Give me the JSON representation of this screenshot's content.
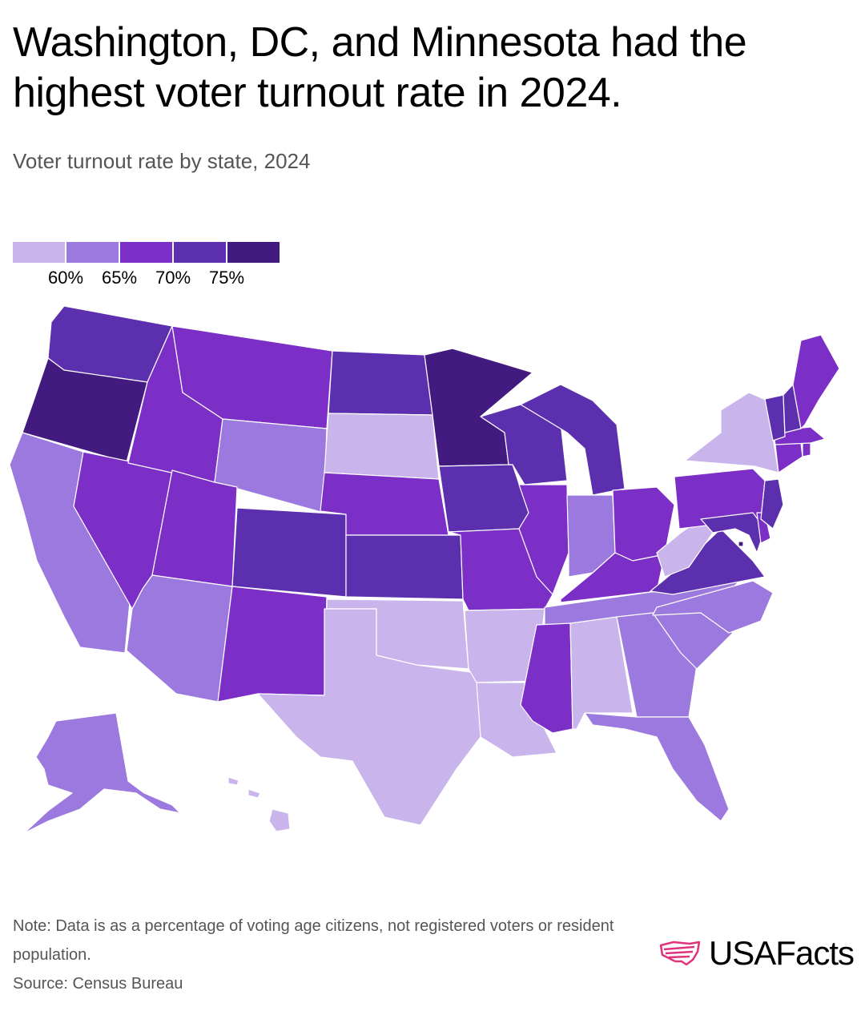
{
  "title": "Washington, DC, and Minnesota had the highest voter turnout rate in 2024.",
  "subtitle": "Voter turnout rate by state, 2024",
  "legend": {
    "ticks": [
      "60%",
      "65%",
      "70%",
      "75%"
    ],
    "bins": [
      {
        "label": "below 60%",
        "color": "#c9b4ec"
      },
      {
        "label": "60% to 65%",
        "color": "#9b79de"
      },
      {
        "label": "65% to 70%",
        "color": "#7b2fc6"
      },
      {
        "label": "70% to 75%",
        "color": "#5b2fae"
      },
      {
        "label": "75% and above",
        "color": "#431a80"
      }
    ]
  },
  "states": [
    {
      "code": "WA",
      "name": "Washington",
      "bin": 3
    },
    {
      "code": "OR",
      "name": "Oregon",
      "bin": 4
    },
    {
      "code": "CA",
      "name": "California",
      "bin": 1
    },
    {
      "code": "NV",
      "name": "Nevada",
      "bin": 2
    },
    {
      "code": "ID",
      "name": "Idaho",
      "bin": 2
    },
    {
      "code": "MT",
      "name": "Montana",
      "bin": 2
    },
    {
      "code": "WY",
      "name": "Wyoming",
      "bin": 1
    },
    {
      "code": "UT",
      "name": "Utah",
      "bin": 2
    },
    {
      "code": "AZ",
      "name": "Arizona",
      "bin": 1
    },
    {
      "code": "CO",
      "name": "Colorado",
      "bin": 3
    },
    {
      "code": "NM",
      "name": "New Mexico",
      "bin": 2
    },
    {
      "code": "ND",
      "name": "North Dakota",
      "bin": 3
    },
    {
      "code": "SD",
      "name": "South Dakota",
      "bin": 0
    },
    {
      "code": "NE",
      "name": "Nebraska",
      "bin": 2
    },
    {
      "code": "KS",
      "name": "Kansas",
      "bin": 3
    },
    {
      "code": "OK",
      "name": "Oklahoma",
      "bin": 0
    },
    {
      "code": "TX",
      "name": "Texas",
      "bin": 0
    },
    {
      "code": "MN",
      "name": "Minnesota",
      "bin": 4
    },
    {
      "code": "IA",
      "name": "Iowa",
      "bin": 3
    },
    {
      "code": "MO",
      "name": "Missouri",
      "bin": 2
    },
    {
      "code": "AR",
      "name": "Arkansas",
      "bin": 0
    },
    {
      "code": "LA",
      "name": "Louisiana",
      "bin": 0
    },
    {
      "code": "WI",
      "name": "Wisconsin",
      "bin": 3
    },
    {
      "code": "IL",
      "name": "Illinois",
      "bin": 2
    },
    {
      "code": "MI",
      "name": "Michigan",
      "bin": 3
    },
    {
      "code": "IN",
      "name": "Indiana",
      "bin": 1
    },
    {
      "code": "OH",
      "name": "Ohio",
      "bin": 2
    },
    {
      "code": "KY",
      "name": "Kentucky",
      "bin": 2
    },
    {
      "code": "TN",
      "name": "Tennessee",
      "bin": 1
    },
    {
      "code": "MS",
      "name": "Mississippi",
      "bin": 2
    },
    {
      "code": "AL",
      "name": "Alabama",
      "bin": 0
    },
    {
      "code": "GA",
      "name": "Georgia",
      "bin": 1
    },
    {
      "code": "FL",
      "name": "Florida",
      "bin": 1
    },
    {
      "code": "SC",
      "name": "South Carolina",
      "bin": 1
    },
    {
      "code": "NC",
      "name": "North Carolina",
      "bin": 1
    },
    {
      "code": "VA",
      "name": "Virginia",
      "bin": 3
    },
    {
      "code": "WV",
      "name": "West Virginia",
      "bin": 0
    },
    {
      "code": "PA",
      "name": "Pennsylvania",
      "bin": 2
    },
    {
      "code": "NY",
      "name": "New York",
      "bin": 0
    },
    {
      "code": "MD",
      "name": "Maryland",
      "bin": 3
    },
    {
      "code": "DE",
      "name": "Delaware",
      "bin": 2
    },
    {
      "code": "DC",
      "name": "Washington, DC",
      "bin": 4
    },
    {
      "code": "NJ",
      "name": "New Jersey",
      "bin": 3
    },
    {
      "code": "CT",
      "name": "Connecticut",
      "bin": 2
    },
    {
      "code": "RI",
      "name": "Rhode Island",
      "bin": 2
    },
    {
      "code": "MA",
      "name": "Massachusetts",
      "bin": 2
    },
    {
      "code": "VT",
      "name": "Vermont",
      "bin": 3
    },
    {
      "code": "NH",
      "name": "New Hampshire",
      "bin": 3
    },
    {
      "code": "ME",
      "name": "Maine",
      "bin": 2
    },
    {
      "code": "AK",
      "name": "Alaska",
      "bin": 1
    },
    {
      "code": "HI",
      "name": "Hawaii",
      "bin": 0
    }
  ],
  "note": "Note: Data is as a percentage of voting age citizens, not registered voters or resident population.",
  "source": "Source: Census Bureau",
  "logo": {
    "text": "USAFacts",
    "color": "#e0337e"
  }
}
